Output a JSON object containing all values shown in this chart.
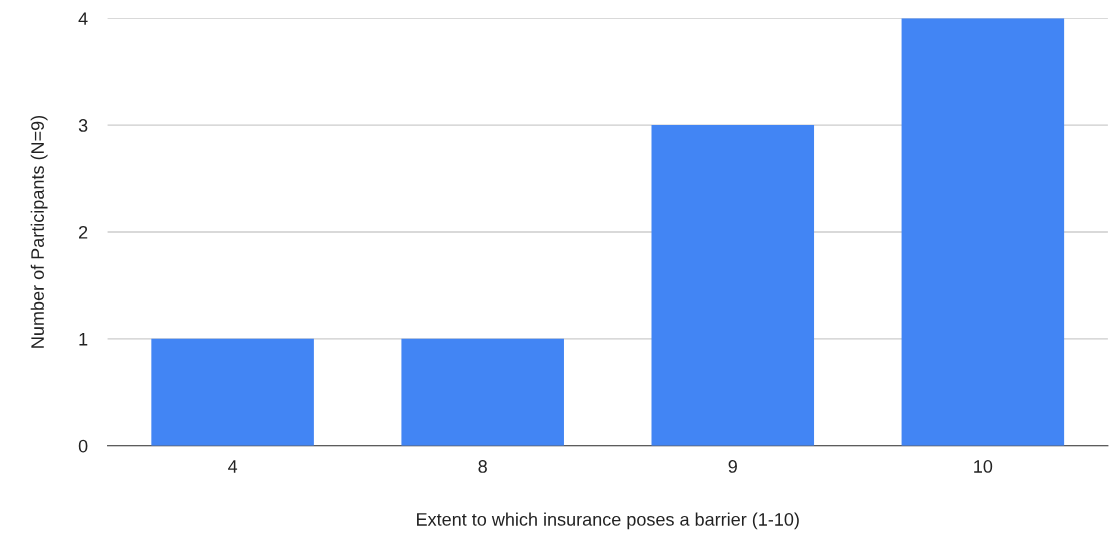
{
  "chart_data": {
    "type": "bar",
    "xlabel": "Extent to which insurance poses a barrier (1-10)",
    "ylabel": "Number of Participants (N=9)",
    "categories": [
      "4",
      "8",
      "9",
      "10"
    ],
    "values": [
      1,
      1,
      3,
      4
    ],
    "color": "#4285f4",
    "ylim": [
      0,
      4
    ],
    "yticks": [
      0,
      1,
      2,
      3,
      4
    ],
    "grid": "y"
  }
}
